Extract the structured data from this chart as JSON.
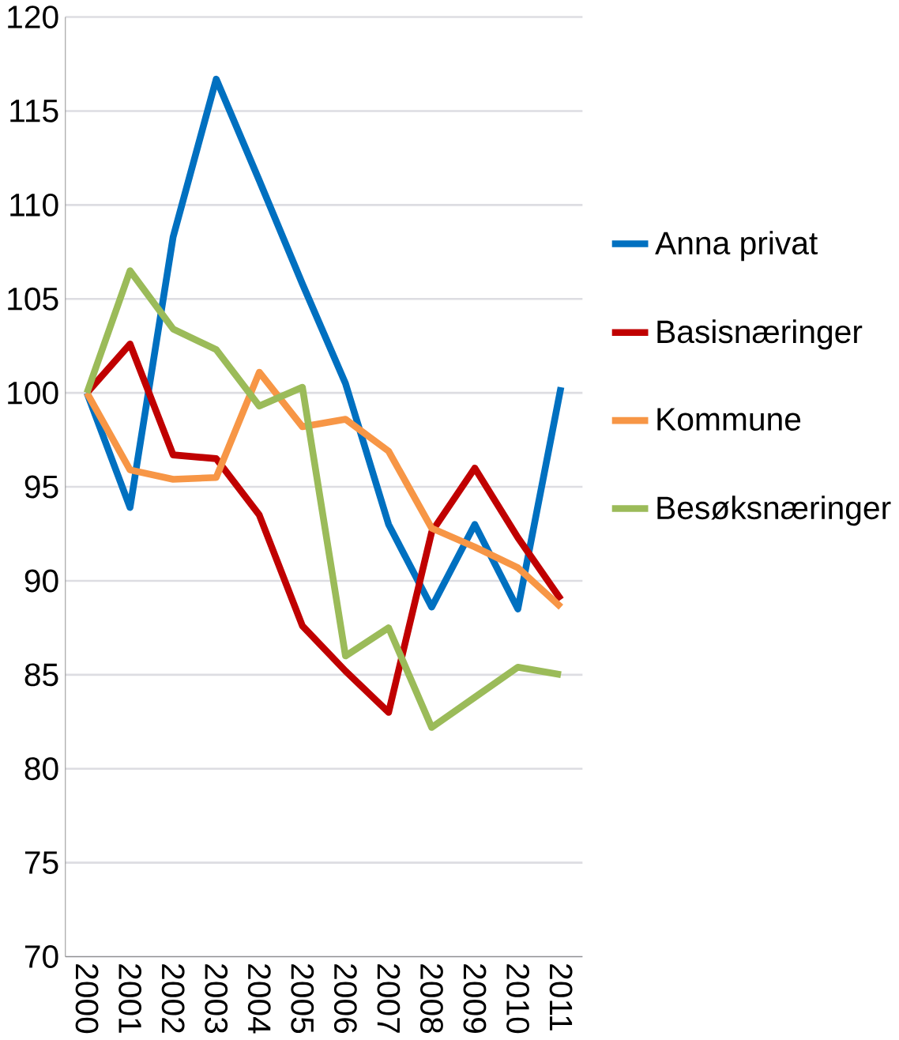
{
  "chart_data": {
    "type": "line",
    "categories": [
      "2000",
      "2001",
      "2002",
      "2003",
      "2004",
      "2005",
      "2006",
      "2007",
      "2008",
      "2009",
      "2010",
      "2011"
    ],
    "series": [
      {
        "name": "Anna privat",
        "color": "#0070c0",
        "values": [
          100,
          93.9,
          108.3,
          116.7,
          111.3,
          105.8,
          100.5,
          93,
          88.6,
          93,
          88.5,
          100.3
        ]
      },
      {
        "name": "Basisnæringer",
        "color": "#c00000",
        "values": [
          100,
          102.6,
          96.7,
          96.5,
          93.5,
          87.6,
          85.2,
          83,
          92.6,
          96,
          92.3,
          89
        ]
      },
      {
        "name": "Kommune",
        "color": "#f79646",
        "values": [
          100,
          95.9,
          95.4,
          95.5,
          101.1,
          98.2,
          98.6,
          96.9,
          92.8,
          91.8,
          90.7,
          88.6
        ]
      },
      {
        "name": "Besøksnæringer",
        "color": "#9bbb59",
        "values": [
          100,
          106.5,
          103.4,
          102.3,
          99.3,
          100.3,
          86,
          87.5,
          82.2,
          83.8,
          85.4,
          85
        ]
      }
    ],
    "ylim": [
      70,
      120
    ],
    "yticks": [
      70,
      75,
      80,
      85,
      90,
      95,
      100,
      105,
      110,
      115,
      120
    ],
    "grid": "y",
    "legend": "right",
    "marker": "none",
    "line_style": "solid"
  }
}
